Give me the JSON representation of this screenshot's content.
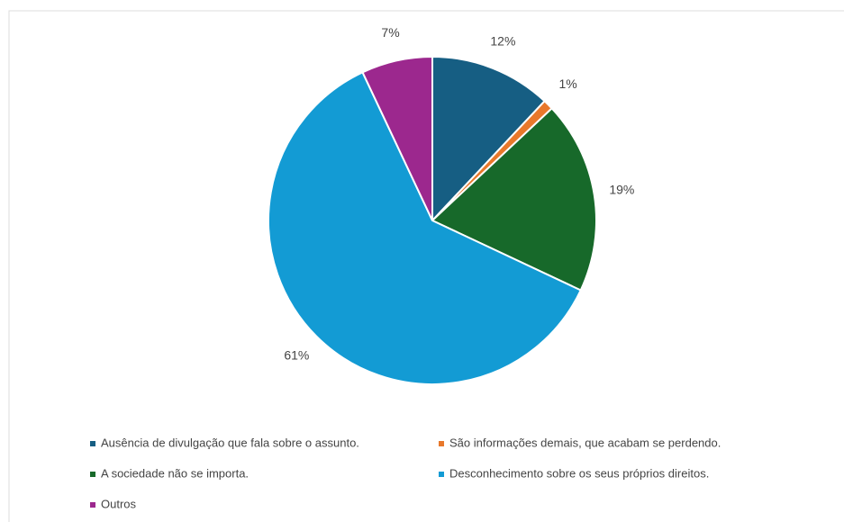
{
  "chart_data": {
    "type": "pie",
    "categories": [
      "Ausência de divulgação que fala sobre o assunto.",
      "São informações demais, que acabam se perdendo.",
      "A sociedade não se importa.",
      "Desconhecimento sobre os seus próprios direitos.",
      "Outros"
    ],
    "values": [
      12,
      1,
      19,
      61,
      7
    ],
    "value_labels": [
      "12%",
      "1%",
      "19%",
      "61%",
      "7%"
    ],
    "colors": [
      "#165e83",
      "#e8782b",
      "#17692a",
      "#139bd4",
      "#9c288e"
    ]
  }
}
